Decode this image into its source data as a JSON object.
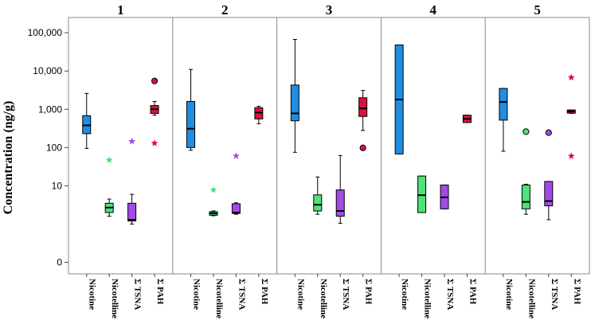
{
  "chart_data": {
    "type": "box",
    "ylabel": "Concentration (ng/g)",
    "y_scale": "log",
    "y_ticks": [
      {
        "value": 0.1,
        "label": "0"
      },
      {
        "value": 10,
        "label": "10"
      },
      {
        "value": 100,
        "label": "100"
      },
      {
        "value": 1000,
        "label": "1,000"
      },
      {
        "value": 10000,
        "label": "10,000"
      },
      {
        "value": 100000,
        "label": "100,000"
      }
    ],
    "ylim": [
      0.05,
      250000
    ],
    "categories": [
      "Nicotine",
      "Nicotelline",
      "Σ TSNA",
      "Σ PAH"
    ],
    "colors": {
      "Nicotine": "#1f8ee0",
      "Nicotelline": "#4ee27a",
      "Σ TSNA": "#a649e8",
      "Σ PAH": "#d9133f"
    },
    "panels": [
      {
        "title": "1",
        "boxes": [
          {
            "category": "Nicotine",
            "whisker_low": 95,
            "q1": 230,
            "median": 380,
            "q3": 680,
            "whisker_high": 2600,
            "outliers": []
          },
          {
            "category": "Nicotelline",
            "whisker_low": 1.6,
            "q1": 2.0,
            "median": 2.7,
            "q3": 3.5,
            "whisker_high": 4.5,
            "outliers": [
              {
                "value": 47,
                "marker": "star"
              }
            ]
          },
          {
            "category": "Σ TSNA",
            "whisker_low": 1.0,
            "q1": 1.2,
            "median": 1.3,
            "q3": 3.5,
            "whisker_high": 6.0,
            "outliers": [
              {
                "value": 145,
                "marker": "star"
              }
            ]
          },
          {
            "category": "Σ PAH",
            "whisker_low": 700,
            "q1": 780,
            "median": 1000,
            "q3": 1250,
            "whisker_high": 1600,
            "outliers": [
              {
                "value": 5500,
                "marker": "circle"
              },
              {
                "value": 130,
                "marker": "star"
              }
            ]
          }
        ]
      },
      {
        "title": "2",
        "boxes": [
          {
            "category": "Nicotine",
            "whisker_low": 85,
            "q1": 100,
            "median": 310,
            "q3": 1600,
            "whisker_high": 11000,
            "outliers": []
          },
          {
            "category": "Nicotelline",
            "whisker_low": 1.65,
            "q1": 1.7,
            "median": 1.9,
            "q3": 2.1,
            "whisker_high": 2.2,
            "outliers": [
              {
                "value": 7.8,
                "marker": "star"
              }
            ]
          },
          {
            "category": "Σ TSNA",
            "whisker_low": 1.8,
            "q1": 1.9,
            "median": 2.0,
            "q3": 3.4,
            "whisker_high": 3.6,
            "outliers": [
              {
                "value": 60,
                "marker": "star"
              }
            ]
          },
          {
            "category": "Σ PAH",
            "whisker_low": 420,
            "q1": 560,
            "median": 820,
            "q3": 1100,
            "whisker_high": 1200,
            "outliers": []
          }
        ]
      },
      {
        "title": "3",
        "boxes": [
          {
            "category": "Nicotine",
            "whisker_low": 75,
            "q1": 500,
            "median": 780,
            "q3": 4300,
            "whisker_high": 67000,
            "outliers": []
          },
          {
            "category": "Nicotelline",
            "whisker_low": 1.8,
            "q1": 2.2,
            "median": 3.2,
            "q3": 5.8,
            "whisker_high": 17,
            "outliers": []
          },
          {
            "category": "Σ TSNA",
            "whisker_low": 1.05,
            "q1": 1.6,
            "median": 2.2,
            "q3": 7.8,
            "whisker_high": 62,
            "outliers": []
          },
          {
            "category": "Σ PAH",
            "whisker_low": 280,
            "q1": 650,
            "median": 1050,
            "q3": 2000,
            "whisker_high": 3100,
            "outliers": [
              {
                "value": 98,
                "marker": "circle"
              }
            ]
          }
        ]
      },
      {
        "title": "4",
        "boxes": [
          {
            "category": "Nicotine",
            "whisker_low": 68,
            "q1": 68,
            "median": 1800,
            "q3": 48000,
            "whisker_high": 48000,
            "outliers": []
          },
          {
            "category": "Nicotelline",
            "whisker_low": 2.0,
            "q1": 2.0,
            "median": 5.7,
            "q3": 18,
            "whisker_high": 18,
            "outliers": []
          },
          {
            "category": "Σ TSNA",
            "whisker_low": 2.5,
            "q1": 2.5,
            "median": 5.0,
            "q3": 10.5,
            "whisker_high": 10.5,
            "outliers": []
          },
          {
            "category": "Σ PAH",
            "whisker_low": 450,
            "q1": 450,
            "median": 560,
            "q3": 700,
            "whisker_high": 700,
            "outliers": []
          }
        ]
      },
      {
        "title": "5",
        "boxes": [
          {
            "category": "Nicotine",
            "whisker_low": 80,
            "q1": 520,
            "median": 1550,
            "q3": 3500,
            "whisker_high": 3500,
            "outliers": []
          },
          {
            "category": "Nicotelline",
            "whisker_low": 1.8,
            "q1": 2.5,
            "median": 3.8,
            "q3": 10.5,
            "whisker_high": 11,
            "outliers": [
              {
                "value": 260,
                "marker": "circle"
              }
            ]
          },
          {
            "category": "Σ TSNA",
            "whisker_low": 1.3,
            "q1": 3.0,
            "median": 4.0,
            "q3": 13,
            "whisker_high": 13,
            "outliers": [
              {
                "value": 245,
                "marker": "circle"
              }
            ]
          },
          {
            "category": "Σ PAH",
            "whisker_low": 780,
            "q1": 790,
            "median": 880,
            "q3": 960,
            "whisker_high": 960,
            "outliers": [
              {
                "value": 6800,
                "marker": "star"
              },
              {
                "value": 60,
                "marker": "star"
              }
            ]
          }
        ]
      }
    ]
  }
}
